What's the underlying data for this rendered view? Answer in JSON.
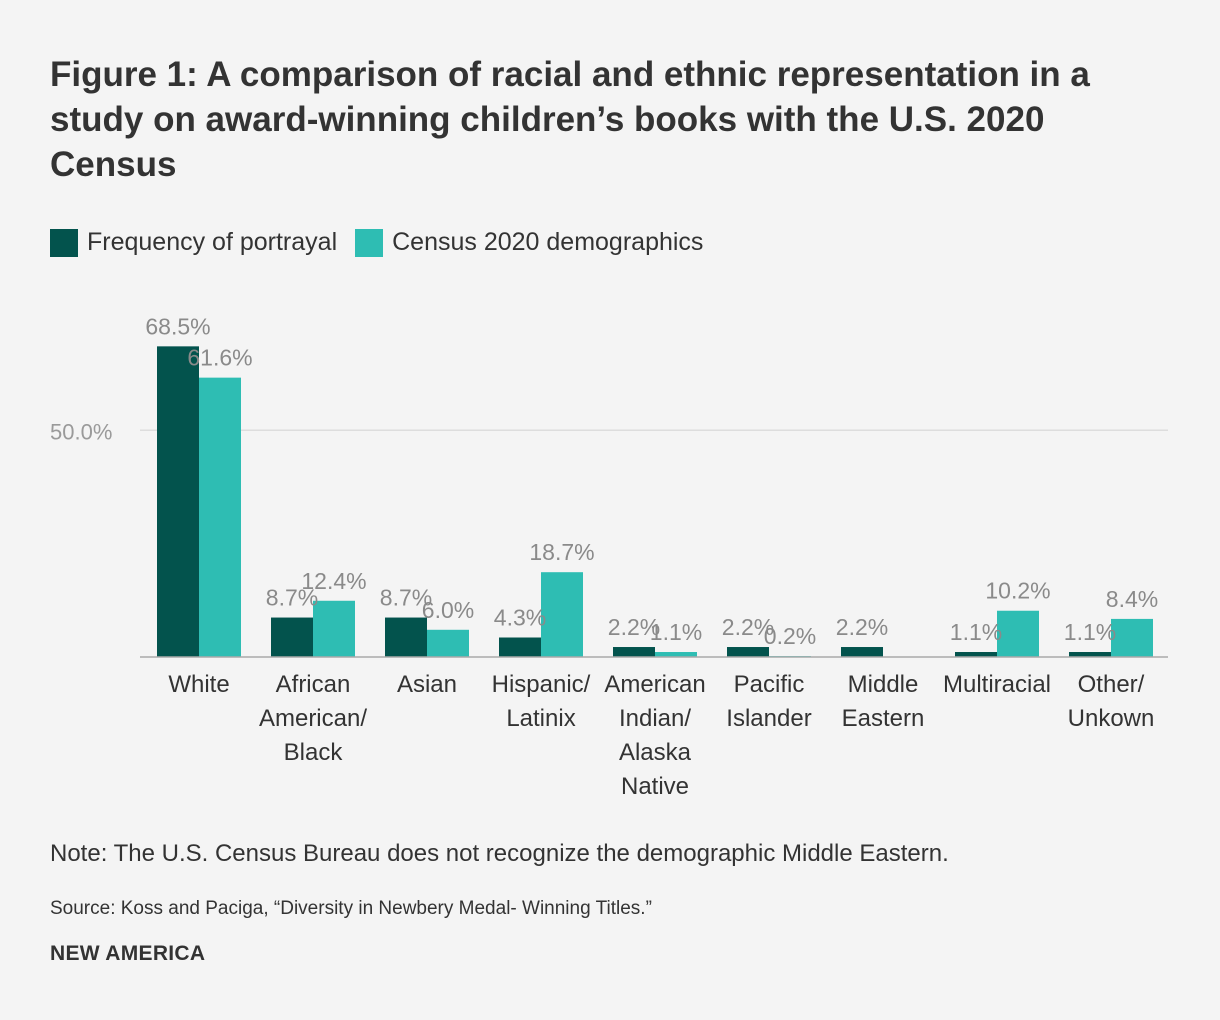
{
  "chart_data": {
    "type": "bar",
    "title": "Figure 1: A comparison of racial and ethnic representation in a study on award-winning children’s books with the U.S. 2020 Census",
    "categories": [
      [
        "White"
      ],
      [
        "African",
        "American/",
        "Black"
      ],
      [
        "Asian"
      ],
      [
        "Hispanic/",
        "Latinix"
      ],
      [
        "American",
        "Indian/",
        "Alaska",
        "Native"
      ],
      [
        "Pacific",
        "Islander"
      ],
      [
        "Middle",
        "Eastern"
      ],
      [
        "Multiracial"
      ],
      [
        "Other/",
        "Unkown"
      ]
    ],
    "series": [
      {
        "name": "Frequency of portrayal",
        "color": "#03534d",
        "values": [
          68.5,
          8.7,
          8.7,
          4.3,
          2.2,
          2.2,
          2.2,
          1.1,
          1.1
        ],
        "labels": [
          "68.5%",
          "8.7%",
          "8.7%",
          "4.3%",
          "2.2%",
          "2.2%",
          "2.2%",
          "1.1%",
          "1.1%"
        ]
      },
      {
        "name": "Census 2020 demographics",
        "color": "#2ebdb3",
        "values": [
          61.6,
          12.4,
          6.0,
          18.7,
          1.1,
          0.2,
          null,
          10.2,
          8.4
        ],
        "labels": [
          "61.6%",
          "12.4%",
          "6.0%",
          "18.7%",
          "1.1%",
          "0.2%",
          "",
          "10.2%",
          "8.4%"
        ]
      }
    ],
    "yticks": [
      {
        "value": 50,
        "label": "50.0%"
      }
    ],
    "ylim": [
      0,
      70
    ],
    "xlabel": "",
    "ylabel": "",
    "legend": "top-left",
    "grid": true
  },
  "note": "Note: The U.S. Census Bureau does not recognize the demographic Middle Eastern.",
  "source": "Source: Koss and Paciga, “Diversity in Newbery Medal- Winning Titles.”",
  "brand": "NEW AMERICA",
  "colors": {
    "background": "#f4f4f4",
    "text": "#333333",
    "value_label": "#8a8a8a",
    "gridline": "#dddddd",
    "axis": "#aaaaaa"
  }
}
